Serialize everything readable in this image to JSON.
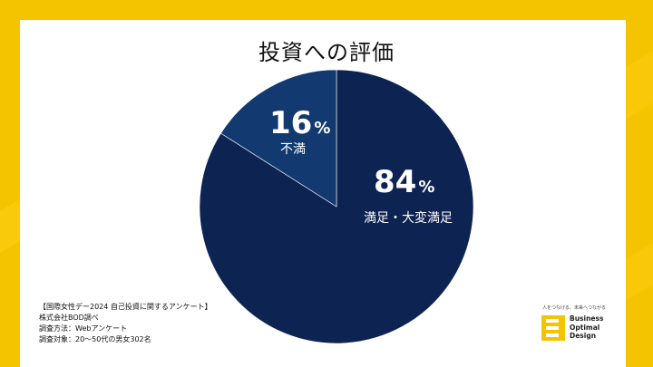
{
  "chart_data": {
    "type": "pie",
    "title": "投資への評価",
    "slices": [
      {
        "label": "満足・大変満足",
        "value": 84,
        "color": "#0d2352"
      },
      {
        "label": "不満",
        "value": 16,
        "color": "#123a70"
      }
    ],
    "percent_sign": "%",
    "start_angle_deg": 0,
    "direction": "clockwise"
  },
  "notes": [
    "【国際女性デー2024 自己投資に関するアンケート】",
    "株式会社BOD調べ",
    "調査方法：Webアンケート",
    "調査対象：20〜50代の男女302名"
  ],
  "logo": {
    "tagline": "人をつなげる、未来へつながる",
    "lines": [
      "Business",
      "Optimal",
      "Design"
    ],
    "color": "#f5c400"
  }
}
